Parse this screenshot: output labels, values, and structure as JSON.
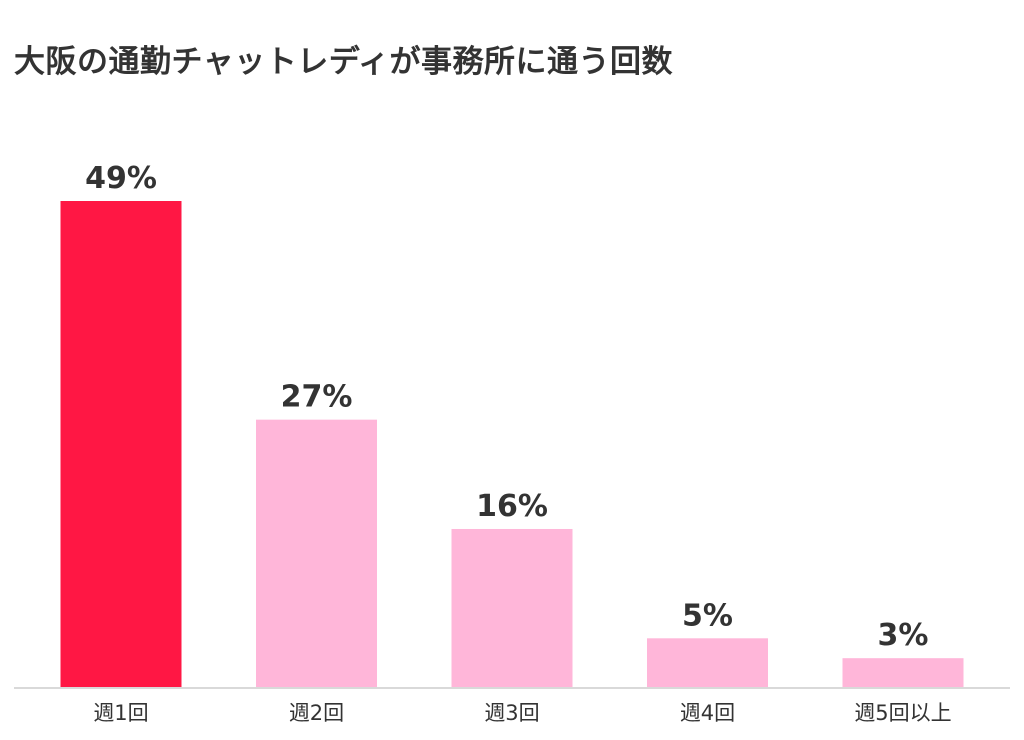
{
  "chart_data": {
    "type": "bar",
    "title": "大阪の通勤チャットレディが事務所に通う回数",
    "xlabel": "",
    "ylabel": "",
    "categories": [
      "週1回",
      "週2回",
      "週3回",
      "週4回",
      "週5回以上"
    ],
    "values": [
      49,
      27,
      16,
      5,
      3
    ],
    "value_labels": [
      "49%",
      "27%",
      "16%",
      "5%",
      "3%"
    ],
    "unit": "%",
    "ylim": [
      0,
      49
    ],
    "grid": false,
    "legend": "none",
    "colors": {
      "highlight": "#ff1744",
      "bar": "#ffb6d9",
      "axis": "#d9d9d9",
      "text": "#333333"
    },
    "highlight_index": 0
  }
}
